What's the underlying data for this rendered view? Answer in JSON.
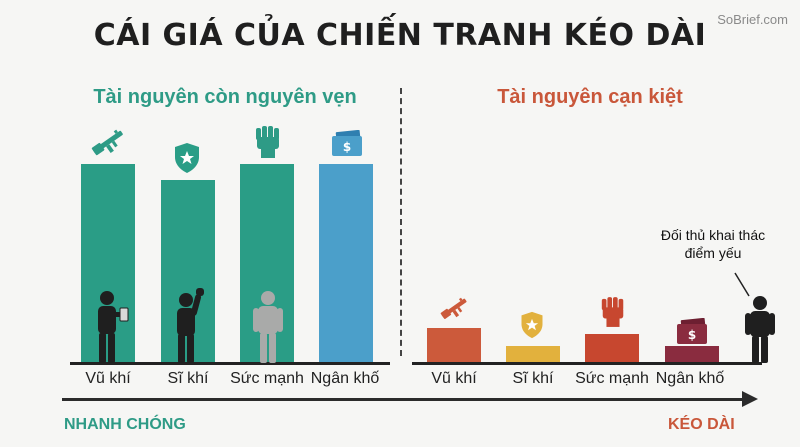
{
  "title": "CÁI GIÁ CỦA CHIẾN TRANH KÉO DÀI",
  "brand": "SoBrief.com",
  "sections": {
    "left_header": "Tài nguyên còn nguyên vẹn",
    "right_header": "Tài nguyên cạn kiệt"
  },
  "colors": {
    "green": "#2e9b86",
    "teal_green": "#2a9d86",
    "blue": "#4b9fca",
    "orange": "#cc5a3b",
    "yellow": "#e2b13d",
    "red_orange": "#c7472f",
    "maroon": "#8a2c3f"
  },
  "intact": [
    {
      "label": "Vũ khí",
      "value": 100,
      "icon": "rifle-icon",
      "figure": "person-holding-tablet-icon"
    },
    {
      "label": "Sĩ khí",
      "value": 92,
      "icon": "shield-star-icon",
      "figure": "person-raising-fist-icon"
    },
    {
      "label": "Sức mạnh",
      "value": 100,
      "icon": "fist-icon",
      "figure": "person-standing-icon"
    },
    {
      "label": "Ngân khố",
      "value": 100,
      "icon": "money-stack-icon",
      "figure": ""
    }
  ],
  "depleted": [
    {
      "label": "Vũ khí",
      "value": 17,
      "icon": "rifle-icon"
    },
    {
      "label": "Sĩ khí",
      "value": 8,
      "icon": "shield-star-icon"
    },
    {
      "label": "Sức mạnh",
      "value": 14,
      "icon": "fist-icon"
    },
    {
      "label": "Ngân khố",
      "value": 8,
      "icon": "money-stack-icon"
    }
  ],
  "opponent_note": "Đối thủ khai thác điểm yếu",
  "timeline": {
    "start_label": "NHANH CHÓNG",
    "end_label": "KÉO DÀI"
  }
}
